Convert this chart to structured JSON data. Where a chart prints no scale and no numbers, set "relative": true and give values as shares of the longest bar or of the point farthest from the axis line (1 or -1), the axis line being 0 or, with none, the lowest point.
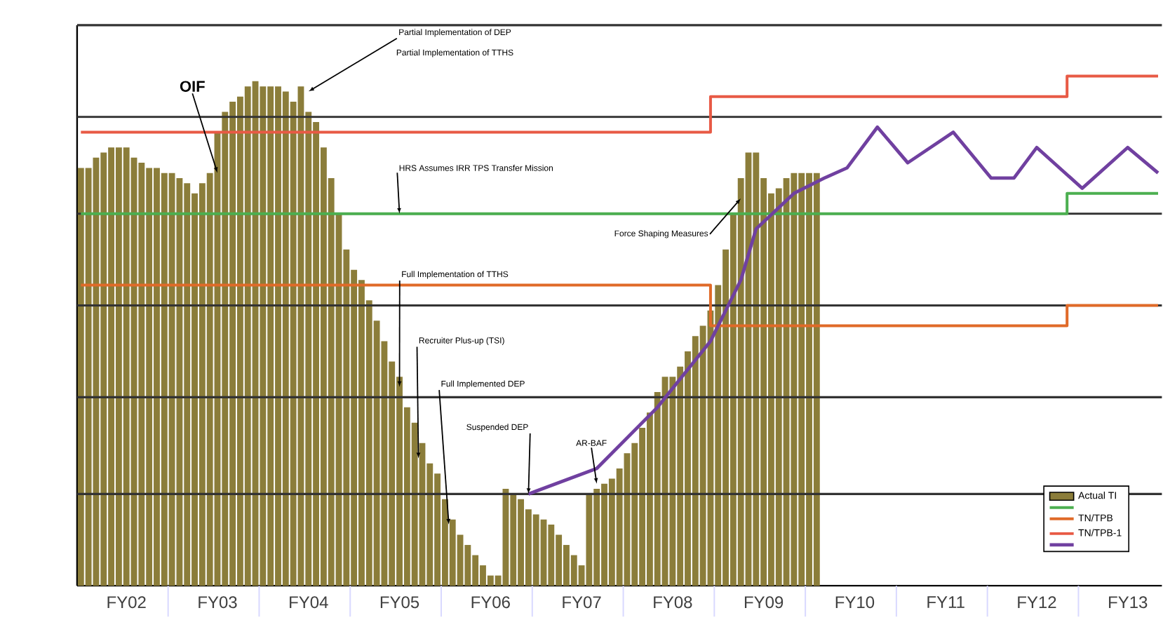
{
  "chart_data": {
    "type": "bar",
    "relative": true,
    "tick_labels": "x",
    "legend": "bottom right",
    "marker": "none",
    "categories": [
      null,
      null,
      null,
      null,
      null,
      null,
      "FY02",
      null,
      null,
      null,
      null,
      null,
      null,
      null,
      null,
      null,
      null,
      null,
      "FY03",
      null,
      null,
      null,
      null,
      null,
      null,
      null,
      null,
      null,
      null,
      null,
      "FY04",
      null,
      null,
      null,
      null,
      null,
      null,
      null,
      null,
      null,
      null,
      null,
      "FY05",
      null,
      null,
      null,
      null,
      null,
      null,
      null,
      null,
      null,
      null,
      null,
      "FY06",
      null,
      null,
      null,
      null,
      null,
      null,
      null,
      null,
      null,
      null,
      null,
      "FY07",
      null,
      null,
      null,
      null,
      null,
      null,
      null,
      null,
      null,
      null,
      null,
      "FY08",
      null,
      null,
      null,
      null,
      null,
      null,
      null,
      null,
      null,
      null,
      null,
      "FY09",
      null,
      null,
      null,
      null,
      null,
      null,
      null,
      null,
      null,
      null,
      null,
      "FY10",
      null,
      null,
      null,
      null,
      null,
      null,
      null,
      null,
      null,
      null,
      null,
      "FY11",
      null,
      null,
      null,
      null,
      null,
      null,
      null,
      null,
      null,
      null,
      null,
      "FY12",
      null,
      null,
      null,
      null,
      null,
      null,
      null,
      null,
      null,
      null,
      null,
      "FY13",
      null,
      null,
      null,
      null
    ],
    "series": [
      {
        "name": "Actual TI",
        "color": "#8b7d3a",
        "values": [
          0.82,
          0.82,
          0.84,
          0.85,
          0.86,
          0.86,
          0.86,
          0.84,
          0.83,
          0.82,
          0.82,
          0.81,
          0.81,
          0.8,
          0.79,
          0.77,
          0.79,
          0.81,
          0.89,
          0.93,
          0.95,
          0.96,
          0.98,
          0.99,
          0.98,
          0.98,
          0.98,
          0.97,
          0.95,
          0.98,
          0.93,
          0.91,
          0.86,
          0.8,
          0.73,
          0.66,
          0.62,
          0.6,
          0.56,
          0.52,
          0.48,
          0.44,
          0.41,
          0.35,
          0.32,
          0.28,
          0.24,
          0.22,
          0.17,
          0.13,
          0.1,
          0.08,
          0.06,
          0.04,
          0.02,
          0.02,
          0.19,
          0.18,
          0.17,
          0.15,
          0.14,
          0.13,
          0.12,
          0.1,
          0.08,
          0.06,
          0.04,
          0.18,
          0.19,
          0.2,
          0.21,
          0.23,
          0.26,
          0.28,
          0.31,
          0.34,
          0.38,
          0.41,
          0.41,
          0.43,
          0.46,
          0.49,
          0.51,
          0.54,
          0.59,
          0.66,
          0.73,
          0.8,
          0.85,
          0.85,
          0.8,
          0.77,
          0.78,
          0.8,
          0.81,
          0.81,
          0.81,
          0.81,
          null,
          null,
          null,
          null,
          null,
          null,
          null,
          null,
          null,
          null,
          null,
          null,
          null,
          null,
          null,
          null,
          null,
          null,
          null,
          null,
          null,
          null,
          null,
          null,
          null,
          null,
          null,
          null,
          null,
          null,
          null,
          null,
          null,
          null,
          null,
          null,
          null,
          null,
          null,
          null,
          null,
          null,
          null,
          null,
          null
        ]
      },
      {
        "type": "step",
        "color": "#4caf50",
        "values": [
          0.73,
          0.73,
          0.73,
          0.73,
          0.73,
          0.73,
          0.73,
          0.73,
          0.73,
          0.73,
          0.73,
          0.73,
          0.73,
          0.73,
          0.73,
          0.73,
          0.73,
          0.73,
          0.73,
          0.73,
          0.73,
          0.73,
          0.73,
          0.73,
          0.73,
          0.73,
          0.73,
          0.73,
          0.73,
          0.73,
          0.73,
          0.73,
          0.73,
          0.73,
          0.73,
          0.73,
          0.73,
          0.73,
          0.73,
          0.73,
          0.73,
          0.73,
          0.73,
          0.73,
          0.73,
          0.73,
          0.73,
          0.73,
          0.73,
          0.73,
          0.73,
          0.73,
          0.73,
          0.73,
          0.73,
          0.73,
          0.73,
          0.73,
          0.73,
          0.73,
          0.73,
          0.73,
          0.73,
          0.73,
          0.73,
          0.73,
          0.73,
          0.73,
          0.73,
          0.73,
          0.73,
          0.73,
          0.73,
          0.73,
          0.73,
          0.73,
          0.73,
          0.73,
          0.73,
          0.73,
          0.73,
          0.73,
          0.73,
          0.73,
          0.73,
          0.73,
          0.73,
          0.73,
          0.73,
          0.73,
          0.73,
          0.73,
          0.73,
          0.73,
          0.73,
          0.73,
          0.73,
          0.73,
          0.73,
          0.73,
          0.73,
          0.73,
          0.73,
          0.73,
          0.73,
          0.73,
          0.73,
          0.73,
          0.73,
          0.73,
          0.73,
          0.73,
          0.73,
          0.73,
          0.73,
          0.73,
          0.73,
          0.73,
          0.73,
          0.73,
          0.73,
          0.73,
          0.73,
          0.73,
          0.73,
          0.73,
          0.73,
          0.73,
          0.73,
          0.73,
          0.77,
          0.77,
          0.77,
          0.77,
          0.77,
          0.77,
          0.77,
          0.77,
          0.77,
          0.77,
          0.77,
          0.77,
          0.77
        ]
      },
      {
        "type": "step",
        "name": "TN/TPB",
        "color": "#e06a28",
        "values": [
          0.59,
          0.59,
          0.59,
          0.59,
          0.59,
          0.59,
          0.59,
          0.59,
          0.59,
          0.59,
          0.59,
          0.59,
          0.59,
          0.59,
          0.59,
          0.59,
          0.59,
          0.59,
          0.59,
          0.59,
          0.59,
          0.59,
          0.59,
          0.59,
          0.59,
          0.59,
          0.59,
          0.59,
          0.59,
          0.59,
          0.59,
          0.59,
          0.59,
          0.59,
          0.59,
          0.59,
          0.59,
          0.59,
          0.59,
          0.59,
          0.59,
          0.59,
          0.59,
          0.59,
          0.59,
          0.59,
          0.59,
          0.59,
          0.59,
          0.59,
          0.59,
          0.59,
          0.59,
          0.59,
          0.59,
          0.59,
          0.59,
          0.59,
          0.59,
          0.59,
          0.59,
          0.59,
          0.59,
          0.59,
          0.59,
          0.59,
          0.59,
          0.59,
          0.59,
          0.59,
          0.59,
          0.59,
          0.59,
          0.59,
          0.59,
          0.59,
          0.59,
          0.59,
          0.59,
          0.59,
          0.59,
          0.59,
          0.59,
          0.51,
          0.51,
          0.51,
          0.51,
          0.51,
          0.51,
          0.51,
          0.51,
          0.51,
          0.51,
          0.51,
          0.51,
          0.51,
          0.51,
          0.51,
          0.51,
          0.51,
          0.51,
          0.51,
          0.51,
          0.51,
          0.51,
          0.51,
          0.51,
          0.51,
          0.51,
          0.51,
          0.51,
          0.51,
          0.51,
          0.51,
          0.51,
          0.51,
          0.51,
          0.51,
          0.51,
          0.51,
          0.51,
          0.51,
          0.51,
          0.51,
          0.51,
          0.51,
          0.51,
          0.51,
          0.51,
          0.51,
          0.55,
          0.55,
          0.55,
          0.55,
          0.55,
          0.55,
          0.55,
          0.55,
          0.55,
          0.55,
          0.55,
          0.55,
          0.55
        ]
      },
      {
        "type": "step",
        "name": "TN/TPB-1",
        "color": "#e85a45",
        "values": [
          0.89,
          0.89,
          0.89,
          0.89,
          0.89,
          0.89,
          0.89,
          0.89,
          0.89,
          0.89,
          0.89,
          0.89,
          0.89,
          0.89,
          0.89,
          0.89,
          0.89,
          0.89,
          0.89,
          0.89,
          0.89,
          0.89,
          0.89,
          0.89,
          0.89,
          0.89,
          0.89,
          0.89,
          0.89,
          0.89,
          0.89,
          0.89,
          0.89,
          0.89,
          0.89,
          0.89,
          0.89,
          0.89,
          0.89,
          0.89,
          0.89,
          0.89,
          0.89,
          0.89,
          0.89,
          0.89,
          0.89,
          0.89,
          0.89,
          0.89,
          0.89,
          0.89,
          0.89,
          0.89,
          0.89,
          0.89,
          0.89,
          0.89,
          0.89,
          0.89,
          0.89,
          0.89,
          0.89,
          0.89,
          0.89,
          0.89,
          0.89,
          0.89,
          0.89,
          0.89,
          0.89,
          0.89,
          0.89,
          0.89,
          0.89,
          0.89,
          0.89,
          0.89,
          0.89,
          0.89,
          0.89,
          0.89,
          0.89,
          0.96,
          0.96,
          0.96,
          0.96,
          0.96,
          0.96,
          0.96,
          0.96,
          0.96,
          0.96,
          0.96,
          0.96,
          0.96,
          0.96,
          0.96,
          0.96,
          0.96,
          0.96,
          0.96,
          0.96,
          0.96,
          0.96,
          0.96,
          0.96,
          0.96,
          0.96,
          0.96,
          0.96,
          0.96,
          0.96,
          0.96,
          0.96,
          0.96,
          0.96,
          0.96,
          0.96,
          0.96,
          0.96,
          0.96,
          0.96,
          0.96,
          0.96,
          0.96,
          0.96,
          0.96,
          0.96,
          0.96,
          1.0,
          1.0,
          1.0,
          1.0,
          1.0,
          1.0,
          1.0,
          1.0,
          1.0,
          1.0,
          1.0,
          1.0,
          1.0
        ]
      },
      {
        "type": "line",
        "color": "#7040a0",
        "values": [
          null,
          null,
          null,
          null,
          null,
          null,
          null,
          null,
          null,
          null,
          null,
          null,
          null,
          null,
          null,
          null,
          null,
          null,
          null,
          null,
          null,
          null,
          null,
          null,
          null,
          null,
          null,
          null,
          null,
          null,
          null,
          null,
          null,
          null,
          null,
          null,
          null,
          null,
          null,
          null,
          null,
          null,
          null,
          null,
          null,
          null,
          null,
          null,
          null,
          null,
          null,
          null,
          null,
          null,
          null,
          null,
          null,
          null,
          null,
          0.18,
          null,
          null,
          null,
          null,
          null,
          null,
          null,
          null,
          0.23,
          null,
          null,
          null,
          null,
          null,
          null,
          null,
          0.35,
          null,
          null,
          null,
          null,
          null,
          null,
          0.48,
          null,
          null,
          null,
          0.6,
          null,
          0.7,
          null,
          null,
          null,
          null,
          0.77,
          null,
          null,
          null,
          0.8,
          null,
          null,
          0.82,
          null,
          null,
          null,
          0.9,
          null,
          null,
          null,
          0.83,
          null,
          null,
          null,
          null,
          null,
          0.89,
          null,
          null,
          null,
          null,
          0.8,
          null,
          null,
          0.8,
          null,
          null,
          0.86,
          null,
          null,
          null,
          null,
          null,
          0.78,
          null,
          null,
          null,
          null,
          null,
          0.86,
          null,
          null,
          null,
          0.81
        ]
      }
    ],
    "ref_lines": [
      {
        "axis": "y",
        "value": 0.18,
        "color": "#333333"
      },
      {
        "axis": "y",
        "value": 0.37,
        "color": "#333333"
      },
      {
        "axis": "y",
        "value": 0.55,
        "color": "#333333"
      },
      {
        "axis": "y",
        "value": 0.73,
        "color": "#333333"
      },
      {
        "axis": "y",
        "value": 0.92,
        "color": "#333333"
      },
      {
        "axis": "y",
        "value": 1.1,
        "color": "#333333"
      }
    ],
    "annotations": [
      {
        "text": "OIF",
        "x": "FY03",
        "y": 0.81
      },
      {
        "text": "Partial Implementation of DEP",
        "x": "FY04",
        "y": 0.97
      },
      "Partial Implementation of TTHS",
      {
        "text": "HRS Assumes IRR TPS Transfer Mission",
        "x": "FY05",
        "y": 0.73
      },
      "Full Implementation of TTHS",
      "Recruiter Plus-up (TSI)",
      "Full Implemented DEP",
      "Suspended DEP",
      "AR-BAF",
      "Force Shaping Measures"
    ]
  }
}
